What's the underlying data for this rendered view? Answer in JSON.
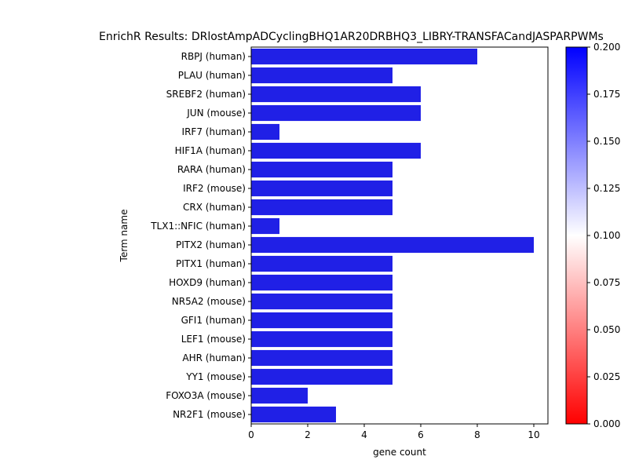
{
  "chart_data": {
    "type": "bar",
    "orientation": "horizontal",
    "title": "EnrichR Results: DRlostAmpADCyclingBHQ1AR20DRBHQ3_LIBRY-TRANSFACandJASPARPWMs",
    "xlabel": "gene count",
    "ylabel": "Term name",
    "xlim": [
      0,
      10.5
    ],
    "xticks": [
      0,
      2,
      4,
      6,
      8,
      10
    ],
    "categories": [
      "RBPJ (human)",
      "PLAU (human)",
      "SREBF2 (human)",
      "JUN (mouse)",
      "IRF7 (human)",
      "HIF1A (human)",
      "RARA (human)",
      "IRF2 (mouse)",
      "CRX (human)",
      "TLX1::NFIC (human)",
      "PITX2 (human)",
      "PITX1 (human)",
      "HOXD9 (human)",
      "NR5A2 (mouse)",
      "GFI1 (human)",
      "LEF1 (mouse)",
      "AHR (human)",
      "YY1 (mouse)",
      "FOXO3A (mouse)",
      "NR2F1 (mouse)"
    ],
    "values": [
      8,
      5,
      6,
      6,
      1,
      6,
      5,
      5,
      5,
      1,
      10,
      5,
      5,
      5,
      5,
      5,
      5,
      5,
      2,
      3
    ],
    "bar_color": "#2020e6",
    "grid": false,
    "legend": "none",
    "colorbar": {
      "min": 0.0,
      "max": 0.2,
      "ticks": [
        "0.000",
        "0.025",
        "0.050",
        "0.075",
        "0.100",
        "0.125",
        "0.150",
        "0.175",
        "0.200"
      ],
      "colors": [
        "#ff0000",
        "#ffffff",
        "#0000ff"
      ]
    }
  }
}
